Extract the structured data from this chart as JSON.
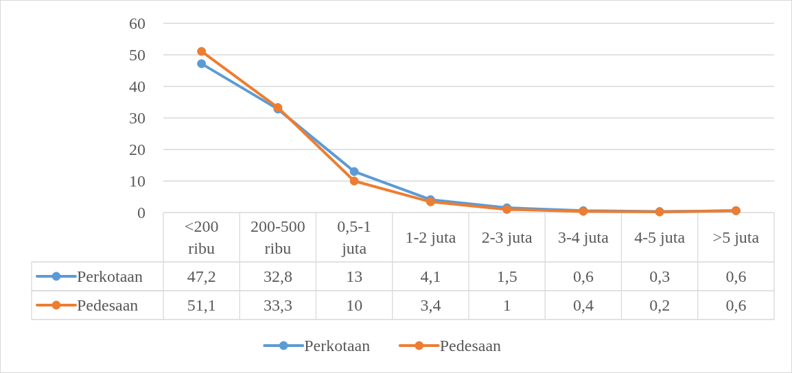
{
  "chart_data": {
    "type": "line",
    "categories": [
      "<200 ribu",
      "200-500 ribu",
      "0,5-1 juta",
      "1-2 juta",
      "2-3 juta",
      "3-4 juta",
      "4-5 juta",
      ">5 juta"
    ],
    "series": [
      {
        "name": "Perkotaan",
        "color": "#5b9bd5",
        "values": [
          47.2,
          32.8,
          13,
          4.1,
          1.5,
          0.6,
          0.3,
          0.6
        ],
        "value_labels": [
          "47,2",
          "32,8",
          "13",
          "4,1",
          "1,5",
          "0,6",
          "0,3",
          "0,6"
        ]
      },
      {
        "name": "Pedesaan",
        "color": "#ed7d31",
        "values": [
          51.1,
          33.3,
          10,
          3.4,
          1,
          0.4,
          0.2,
          0.6
        ],
        "value_labels": [
          "51,1",
          "33,3",
          "10",
          "3,4",
          "1",
          "0,4",
          "0,2",
          "0,6"
        ]
      }
    ],
    "ylim": [
      0,
      60
    ],
    "yticks": [
      0,
      10,
      20,
      30,
      40,
      50,
      60
    ],
    "grid": "y",
    "legend": "bottom",
    "marker": "circle",
    "line_style": "solid"
  }
}
